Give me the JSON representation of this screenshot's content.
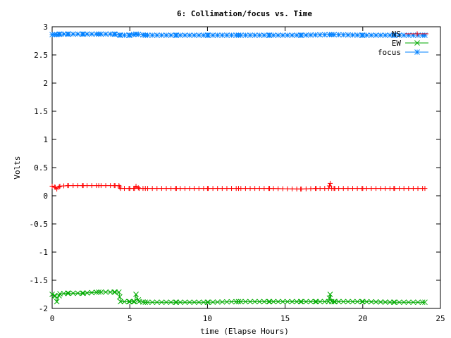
{
  "chart_data": {
    "type": "line",
    "title": "6: Collimation/focus vs. Time",
    "xlabel": "time (Elapse Hours)",
    "ylabel": "Volts",
    "xlim": [
      0,
      25
    ],
    "ylim": [
      -2,
      3
    ],
    "xticks": [
      0,
      5,
      10,
      15,
      20,
      25
    ],
    "xtick_labels": [
      "0",
      "5",
      "10",
      "15",
      "20",
      "25"
    ],
    "yticks": [
      -2,
      -1.5,
      -1,
      -0.5,
      0,
      0.5,
      1,
      1.5,
      2,
      2.5,
      3
    ],
    "ytick_labels": [
      "-2",
      "-1.5",
      "-1",
      "-0.5",
      "0",
      "0.5",
      "1",
      "1.5",
      "2",
      "2.5",
      "3"
    ],
    "grid": false,
    "legend_position": "top-right",
    "series": [
      {
        "name": "NS",
        "color": "#ff0000",
        "marker": "plus",
        "x": [
          0,
          0.2,
          0.3,
          0.5,
          1.0,
          2.0,
          3.0,
          4.0,
          4.3,
          4.4,
          5.0,
          5.3,
          5.4,
          5.6,
          6.0,
          8.0,
          10.0,
          12.0,
          14.0,
          16.0,
          17.0,
          17.8,
          17.9,
          18.0,
          18.2,
          20.0,
          22.0,
          24.0
        ],
        "y": [
          0.17,
          0.15,
          0.12,
          0.17,
          0.18,
          0.18,
          0.18,
          0.18,
          0.18,
          0.13,
          0.13,
          0.13,
          0.17,
          0.13,
          0.13,
          0.13,
          0.13,
          0.13,
          0.13,
          0.12,
          0.13,
          0.13,
          0.22,
          0.13,
          0.13,
          0.13,
          0.13,
          0.13
        ]
      },
      {
        "name": "EW",
        "color": "#00aa00",
        "marker": "x",
        "x": [
          0,
          0.2,
          0.3,
          0.5,
          1.0,
          2.0,
          3.0,
          4.0,
          4.3,
          4.4,
          5.0,
          5.3,
          5.4,
          5.6,
          6.0,
          8.0,
          10.0,
          12.0,
          14.0,
          16.0,
          17.0,
          17.8,
          17.9,
          18.0,
          18.2,
          20.0,
          22.0,
          24.0
        ],
        "y": [
          -1.75,
          -1.78,
          -1.88,
          -1.74,
          -1.73,
          -1.73,
          -1.71,
          -1.71,
          -1.71,
          -1.88,
          -1.88,
          -1.88,
          -1.75,
          -1.88,
          -1.89,
          -1.89,
          -1.89,
          -1.88,
          -1.88,
          -1.88,
          -1.88,
          -1.88,
          -1.75,
          -1.88,
          -1.88,
          -1.88,
          -1.89,
          -1.89
        ]
      },
      {
        "name": "focus",
        "color": "#0080ff",
        "marker": "star",
        "x": [
          0,
          0.3,
          0.5,
          1.0,
          2.0,
          3.0,
          4.0,
          4.4,
          5.0,
          5.4,
          6.0,
          8.0,
          10.0,
          12.0,
          14.0,
          16.0,
          18.0,
          20.0,
          22.0,
          24.0
        ],
        "y": [
          2.86,
          2.86,
          2.87,
          2.87,
          2.87,
          2.87,
          2.87,
          2.85,
          2.85,
          2.87,
          2.85,
          2.85,
          2.85,
          2.85,
          2.85,
          2.85,
          2.86,
          2.85,
          2.85,
          2.85
        ]
      }
    ]
  }
}
